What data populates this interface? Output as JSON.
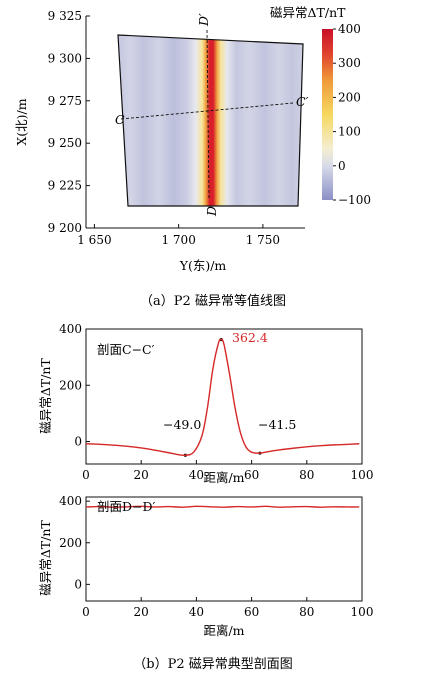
{
  "colors": {
    "accent": "#d62828",
    "axis": "#111111",
    "curve": "#d62828"
  },
  "chart_data": [
    {
      "type": "heatmap",
      "title": "",
      "xlabel": "Y(东)/m",
      "ylabel": "X(北)/m",
      "x_ticks": [
        "1 650",
        "1 700",
        "1 750"
      ],
      "y_ticks": [
        "9 325",
        "9 300",
        "9 275",
        "9 250",
        "9 225",
        "9 200"
      ],
      "xlim": [
        1645,
        1775
      ],
      "ylim": [
        9200,
        9325
      ],
      "colorbar": {
        "title": "磁异常ΔT/nT",
        "ticks": [
          "400",
          "300",
          "200",
          "100",
          "0",
          "−100"
        ],
        "range": [
          -100,
          400
        ]
      },
      "anomaly_peak_x": 1718,
      "profile_lines": [
        {
          "name": "C",
          "end_name": "C′",
          "from": [
            1667,
            9265
          ],
          "to": [
            1772,
            9273
          ]
        },
        {
          "name": "D′",
          "end_name": "D",
          "from": [
            1715,
            9320
          ],
          "to": [
            1721,
            9211
          ]
        }
      ],
      "caption": "（a）P2 磁异常等值线图"
    },
    {
      "type": "line",
      "title": "",
      "inner_label": "剖面C−C′",
      "xlabel": "距离/m",
      "ylabel": "磁异常ΔT/nT",
      "xlim": [
        0,
        100
      ],
      "ylim": [
        -80,
        400
      ],
      "x_ticks": [
        "0",
        "20",
        "40",
        "60",
        "80",
        "100"
      ],
      "y_ticks": [
        "0",
        "200",
        "400"
      ],
      "series": [
        {
          "x": [
            0,
            5,
            10,
            15,
            20,
            25,
            30,
            33,
            36,
            39,
            42,
            44,
            46,
            48,
            49,
            50,
            52,
            54,
            56,
            58,
            60,
            63,
            66,
            70,
            75,
            80,
            85,
            90,
            95,
            99
          ],
          "y": [
            -8,
            -10,
            -13,
            -17,
            -23,
            -31,
            -40,
            -46,
            -49,
            -38,
            20,
            120,
            260,
            350,
            362.4,
            345,
            240,
            120,
            30,
            -20,
            -38,
            -41.5,
            -36,
            -30,
            -24,
            -19,
            -15,
            -12,
            -10,
            -8
          ]
        }
      ],
      "annotations": [
        "362.4",
        "−49.0",
        "−41.5"
      ],
      "caption": ""
    },
    {
      "type": "line",
      "title": "",
      "inner_label": "剖面D−D′",
      "xlabel": "距离/m",
      "ylabel": "磁异常ΔT/nT",
      "xlim": [
        0,
        100
      ],
      "ylim": [
        -80,
        420
      ],
      "x_ticks": [
        "0",
        "20",
        "40",
        "60",
        "80",
        "100"
      ],
      "y_ticks": [
        "0",
        "200",
        "400"
      ],
      "series": [
        {
          "x": [
            0,
            5,
            10,
            15,
            20,
            25,
            30,
            35,
            40,
            45,
            50,
            55,
            60,
            65,
            70,
            75,
            80,
            85,
            90,
            95,
            99
          ],
          "y": [
            372,
            374,
            371,
            373,
            375,
            372,
            374,
            371,
            375,
            373,
            371,
            374,
            372,
            375,
            371,
            373,
            374,
            371,
            373,
            372,
            372
          ]
        }
      ],
      "caption": "（b）P2 磁异常典型剖面图"
    }
  ]
}
